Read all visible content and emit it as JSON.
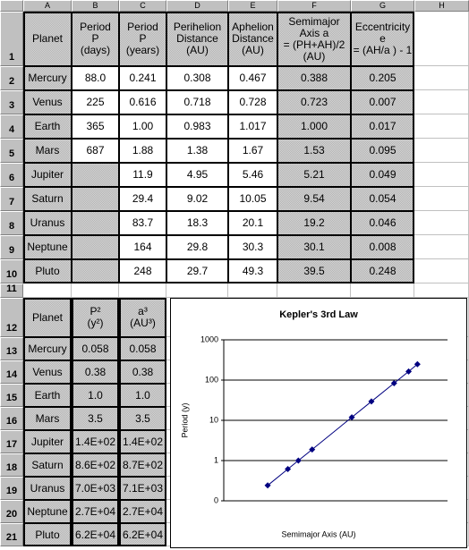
{
  "column_letters": [
    "A",
    "B",
    "C",
    "D",
    "E",
    "F",
    "G",
    "H"
  ],
  "row_numbers": [
    1,
    2,
    3,
    4,
    5,
    6,
    7,
    8,
    9,
    10,
    11,
    12,
    13,
    14,
    15,
    16,
    17,
    18,
    19,
    20,
    21
  ],
  "table1": {
    "header": [
      "Planet",
      "Period\nP\n(days)",
      "Period\nP\n(years)",
      "Perihelion\nDistance\n(AU)",
      "Aphelion\nDistance\n(AU)",
      "Semimajor\nAxis a\n= (PH+AH)/2\n(AU)",
      "Eccentricity\ne\n= (AH/a ) - 1"
    ],
    "rows": [
      [
        "Mercury",
        "88.0",
        "0.241",
        "0.308",
        "0.467",
        "0.388",
        "0.205"
      ],
      [
        "Venus",
        "225",
        "0.616",
        "0.718",
        "0.728",
        "0.723",
        "0.007"
      ],
      [
        "Earth",
        "365",
        "1.00",
        "0.983",
        "1.017",
        "1.000",
        "0.017"
      ],
      [
        "Mars",
        "687",
        "1.88",
        "1.38",
        "1.67",
        "1.53",
        "0.095"
      ],
      [
        "Jupiter",
        null,
        "11.9",
        "4.95",
        "5.46",
        "5.21",
        "0.049"
      ],
      [
        "Saturn",
        null,
        "29.4",
        "9.02",
        "10.05",
        "9.54",
        "0.054"
      ],
      [
        "Uranus",
        null,
        "83.7",
        "18.3",
        "20.1",
        "19.2",
        "0.046"
      ],
      [
        "Neptune",
        null,
        "164",
        "29.8",
        "30.3",
        "30.1",
        "0.008"
      ],
      [
        "Pluto",
        null,
        "248",
        "29.7",
        "49.3",
        "39.5",
        "0.248"
      ]
    ]
  },
  "table2": {
    "header": [
      "Planet",
      "P²\n(y²)",
      "a³\n(AU³)"
    ],
    "rows": [
      [
        "Mercury",
        "0.058",
        "0.058"
      ],
      [
        "Venus",
        "0.38",
        "0.38"
      ],
      [
        "Earth",
        "1.0",
        "1.0"
      ],
      [
        "Mars",
        "3.5",
        "3.5"
      ],
      [
        "Jupiter",
        "1.4E+02",
        "1.4E+02"
      ],
      [
        "Saturn",
        "8.6E+02",
        "8.7E+02"
      ],
      [
        "Uranus",
        "7.0E+03",
        "7.1E+03"
      ],
      [
        "Neptune",
        "2.7E+04",
        "2.7E+04"
      ],
      [
        "Pluto",
        "6.2E+04",
        "6.2E+04"
      ]
    ]
  },
  "chart_data": {
    "type": "scatter",
    "title": "Kepler's 3rd Law",
    "x_label": "Semimajor Axis (AU)",
    "y_label": "Period (y)",
    "x": [
      0.388,
      0.723,
      1.0,
      1.53,
      5.21,
      9.54,
      19.2,
      30.1,
      39.5
    ],
    "values": [
      0.241,
      0.616,
      1.0,
      1.88,
      11.9,
      29.4,
      83.7,
      164,
      248
    ],
    "color": "#000080",
    "line": true,
    "log_x": true,
    "log_y": true,
    "xlim": [
      0.1,
      100
    ],
    "ylim": [
      0.1,
      1000
    ],
    "yticks": [
      {
        "value": 0.1,
        "label": "0"
      },
      1,
      10,
      100,
      1000
    ],
    "grid": true
  }
}
